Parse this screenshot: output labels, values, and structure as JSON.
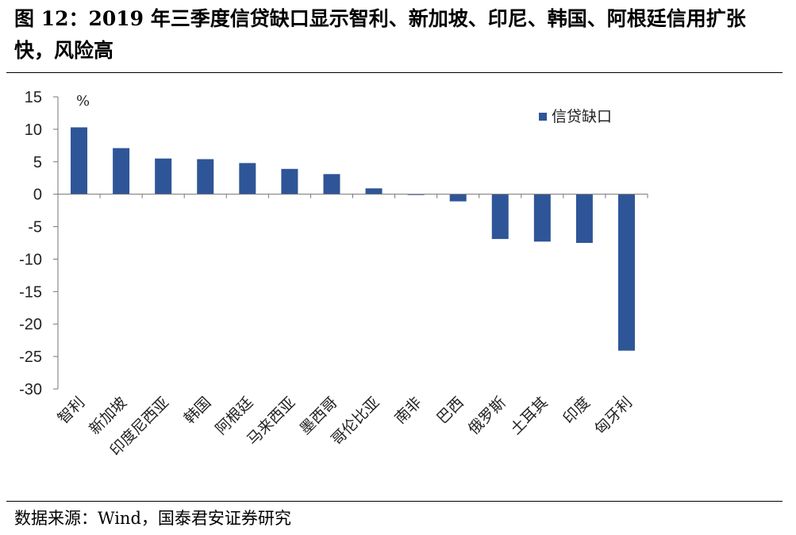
{
  "title": "图 12：2019 年三季度信贷缺口显示智利、新加坡、印尼、韩国、阿根廷信用扩张快，风险高",
  "source": "数据来源：Wind，国泰君安证券研究",
  "chart_data": {
    "type": "bar",
    "unit_label": "%",
    "categories": [
      "智利",
      "新加坡",
      "印度尼西亚",
      "韩国",
      "阿根廷",
      "马来西亚",
      "墨西哥",
      "哥伦比亚",
      "南非",
      "巴西",
      "俄罗斯",
      "土耳其",
      "印度",
      "匈牙利"
    ],
    "series": [
      {
        "name": "信贷缺口",
        "color": "#2E5597",
        "values": [
          10.3,
          7.1,
          5.5,
          5.4,
          4.8,
          3.9,
          3.1,
          0.9,
          -0.1,
          -1.1,
          -6.9,
          -7.3,
          -7.5,
          -24.1
        ]
      }
    ],
    "ylim": [
      -30,
      15
    ],
    "yticks": [
      15,
      10,
      5,
      0,
      -5,
      -10,
      -15,
      -20,
      -25,
      -30
    ],
    "legend_position": "top-right",
    "grid": false
  }
}
